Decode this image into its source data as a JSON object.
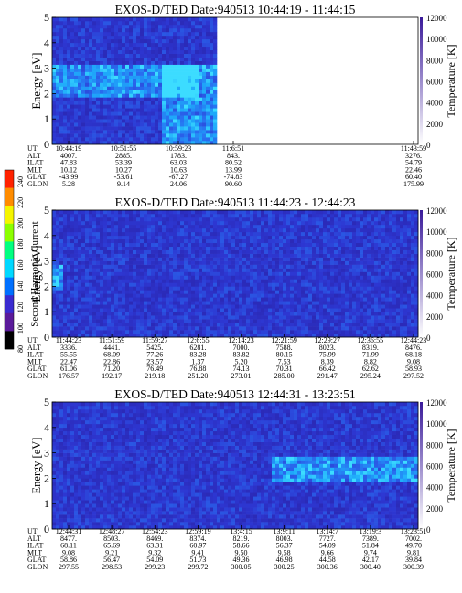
{
  "colorbar": {
    "label": "Second Harmonic Current",
    "ticks": [
      "240",
      "220",
      "200",
      "180",
      "160",
      "140",
      "120",
      "100",
      "80"
    ],
    "colors": [
      "#ff2200",
      "#ff8c00",
      "#f5f500",
      "#8cff00",
      "#00ff80",
      "#00d8ff",
      "#0070ff",
      "#3a2bd0",
      "#5a1a9a",
      "#000000"
    ]
  },
  "chart_data": [
    {
      "type": "heatmap",
      "title": "EXOS-D/TED   Date:940513   10:44:19 - 11:44:15",
      "ylabel": "Energy [eV]",
      "ylim": [
        0,
        5
      ],
      "yticks": [
        "0",
        "1",
        "2",
        "3",
        "4",
        "5"
      ],
      "y2label": "Temperature [K]",
      "y2lim": [
        0,
        12000
      ],
      "y2ticks": [
        "0",
        "2000",
        "4000",
        "6000",
        "8000",
        "10000",
        "12000"
      ],
      "data_coverage": [
        0,
        0.45
      ],
      "features": [
        {
          "desc": "enhanced band",
          "t_range": [
            0.0,
            0.4
          ],
          "energy_range": [
            1.9,
            3.1
          ]
        },
        {
          "desc": "enhanced burst",
          "t_range": [
            0.3,
            0.45
          ],
          "energy_range": [
            0.0,
            3.2
          ]
        }
      ],
      "table": {
        "labels": [
          "UT",
          "ALT",
          "ILAT",
          "MLT",
          "GLAT",
          "GLON"
        ],
        "columns": [
          [
            "10:44:19",
            "4007.",
            "47.83",
            "10.12",
            "-43.99",
            "5.28"
          ],
          [
            "10:51:55",
            "2885.",
            "53.39",
            "10.27",
            "-53.61",
            "9.14"
          ],
          [
            "10:59:23",
            "1783.",
            "63.03",
            "10.63",
            "-67.27",
            "24.06"
          ],
          [
            "11:6:51",
            "843.",
            "80.52",
            "13.99",
            "-74.83",
            "90.60"
          ],
          [
            "11:43:59",
            "3276.",
            "54.79",
            "22.46",
            "60.40",
            "175.99"
          ]
        ]
      }
    },
    {
      "type": "heatmap",
      "title": "EXOS-D/TED   Date:940513   11:44:23 - 12:44:23",
      "ylabel": "Energy [eV]",
      "ylim": [
        0,
        5
      ],
      "yticks": [
        "0",
        "1",
        "2",
        "3",
        "4",
        "5"
      ],
      "y2label": "Temperature [K]",
      "y2lim": [
        0,
        12000
      ],
      "y2ticks": [
        "0",
        "2000",
        "4000",
        "6000",
        "8000",
        "10000",
        "12000"
      ],
      "data_coverage": [
        0,
        1
      ],
      "features": [
        {
          "desc": "weak enhancement",
          "t_range": [
            0.0,
            0.03
          ],
          "energy_range": [
            1.8,
            2.8
          ]
        }
      ],
      "table": {
        "labels": [
          "UT",
          "ALT",
          "ILAT",
          "MLT",
          "GLAT",
          "GLON"
        ],
        "columns": [
          [
            "11:44:23",
            "3336.",
            "55.55",
            "22.47",
            "61.06",
            "176.57"
          ],
          [
            "11:51:59",
            "4441.",
            "68.09",
            "22.86",
            "71.20",
            "192.17"
          ],
          [
            "11:59:27",
            "5425.",
            "77.26",
            "23.57",
            "76.49",
            "219.18"
          ],
          [
            "12:6:55",
            "6281.",
            "83.28",
            "1.37",
            "76.88",
            "251.20"
          ],
          [
            "12:14:23",
            "7000.",
            "83.82",
            "5.20",
            "74.13",
            "273.01"
          ],
          [
            "12:21:59",
            "7588.",
            "80.15",
            "7.53",
            "70.31",
            "285.00"
          ],
          [
            "12:29:27",
            "8023.",
            "75.99",
            "8.39",
            "66.42",
            "291.47"
          ],
          [
            "12:36:55",
            "8319.",
            "71.99",
            "8.82",
            "62.62",
            "295.24"
          ],
          [
            "12:44:23",
            "8476.",
            "68.18",
            "9.08",
            "58.93",
            "297.52"
          ]
        ]
      }
    },
    {
      "type": "heatmap",
      "title": "EXOS-D/TED   Date:940513   12:44:31 - 13:23:51",
      "ylabel": "Energy [eV]",
      "ylim": [
        0,
        5
      ],
      "yticks": [
        "0",
        "1",
        "2",
        "3",
        "4",
        "5"
      ],
      "y2label": "Temperature [K]",
      "y2lim": [
        0,
        12000
      ],
      "y2ticks": [
        "0",
        "2000",
        "4000",
        "6000",
        "8000",
        "10000",
        "12000"
      ],
      "data_coverage": [
        0,
        1
      ],
      "features": [
        {
          "desc": "enhanced band",
          "t_range": [
            0.6,
            1.0
          ],
          "energy_range": [
            1.8,
            2.9
          ]
        }
      ],
      "table": {
        "labels": [
          "UT",
          "ALT",
          "ILAT",
          "MLT",
          "GLAT",
          "GLON"
        ],
        "columns": [
          [
            "12:44:31",
            "8477.",
            "68.11",
            "9.08",
            "58.86",
            "297.55"
          ],
          [
            "12:48:27",
            "8503.",
            "65.69",
            "9.21",
            "56.47",
            "298.53"
          ],
          [
            "12:54:23",
            "8469.",
            "63.31",
            "9.32",
            "54.09",
            "299.23"
          ],
          [
            "12:59:19",
            "8374.",
            "60.97",
            "9.41",
            "51.73",
            "299.72"
          ],
          [
            "13:4:15",
            "8219.",
            "58.66",
            "9.50",
            "49.36",
            "300.05"
          ],
          [
            "13:9:11",
            "8003.",
            "56.37",
            "9.58",
            "46.98",
            "300.25"
          ],
          [
            "13:14:7",
            "7727.",
            "54.09",
            "9.66",
            "44.58",
            "300.36"
          ],
          [
            "13:19:3",
            "7389.",
            "51.84",
            "9.74",
            "42.17",
            "300.40"
          ],
          [
            "13:23:51",
            "7002.",
            "49.70",
            "9.81",
            "39.84",
            "300.39"
          ]
        ]
      }
    }
  ]
}
